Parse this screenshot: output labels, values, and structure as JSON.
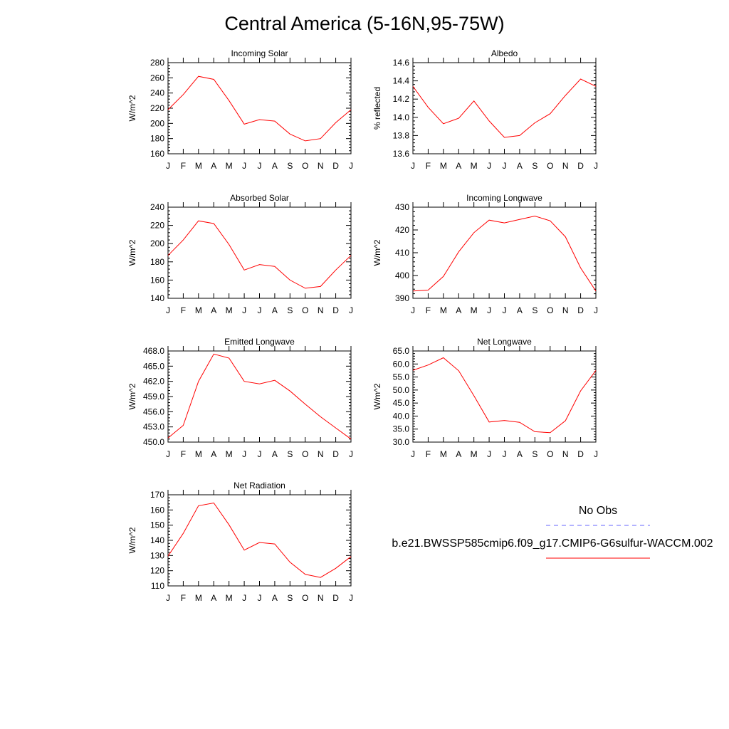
{
  "title": "Central America (5-16N,95-75W)",
  "colors": {
    "model_line": "#ff0000",
    "obs_line": "#6666ff",
    "axis": "#000000"
  },
  "legend": {
    "obs_label": "No Obs",
    "model_label": "b.e21.BWSSP585cmip6.f09_g17.CMIP6-G6sulfur-WACCM.002"
  },
  "chart_data": [
    {
      "type": "line",
      "title": "Incoming Solar",
      "ylabel": "W/m^2",
      "categories": [
        "J",
        "F",
        "M",
        "A",
        "M",
        "J",
        "J",
        "A",
        "S",
        "O",
        "N",
        "D",
        "J"
      ],
      "ylim": [
        160,
        280
      ],
      "yticks": [
        160,
        180,
        200,
        220,
        240,
        260,
        280
      ],
      "ytick_labels": [
        "160",
        "180",
        "200",
        "220",
        "240",
        "260",
        "280"
      ],
      "series": [
        {
          "values": [
            218,
            238,
            262,
            258,
            230,
            199,
            205,
            203,
            186,
            177,
            180,
            201,
            218
          ]
        }
      ]
    },
    {
      "type": "line",
      "title": "Albedo",
      "ylabel": "% reflected",
      "categories": [
        "J",
        "F",
        "M",
        "A",
        "M",
        "J",
        "J",
        "A",
        "S",
        "O",
        "N",
        "D",
        "J"
      ],
      "ylim": [
        13.6,
        14.6
      ],
      "yticks": [
        13.6,
        13.8,
        14.0,
        14.2,
        14.4,
        14.6
      ],
      "ytick_labels": [
        "13.6",
        "13.8",
        "14.0",
        "14.2",
        "14.4",
        "14.6"
      ],
      "series": [
        {
          "values": [
            14.34,
            14.11,
            13.93,
            13.99,
            14.18,
            13.96,
            13.78,
            13.8,
            13.94,
            14.04,
            14.24,
            14.42,
            14.34
          ]
        }
      ]
    },
    {
      "type": "line",
      "title": "Absorbed Solar",
      "ylabel": "W/m^2",
      "categories": [
        "J",
        "F",
        "M",
        "A",
        "M",
        "J",
        "J",
        "A",
        "S",
        "O",
        "N",
        "D",
        "J"
      ],
      "ylim": [
        140,
        240
      ],
      "yticks": [
        140,
        160,
        180,
        200,
        220,
        240
      ],
      "ytick_labels": [
        "140",
        "160",
        "180",
        "200",
        "220",
        "240"
      ],
      "series": [
        {
          "values": [
            187,
            204,
            225,
            222,
            199,
            171,
            177,
            175,
            160,
            151,
            153,
            171,
            187
          ]
        }
      ]
    },
    {
      "type": "line",
      "title": "Incoming Longwave",
      "ylabel": "W/m^2",
      "categories": [
        "J",
        "F",
        "M",
        "A",
        "M",
        "J",
        "J",
        "A",
        "S",
        "O",
        "N",
        "D",
        "J"
      ],
      "ylim": [
        390,
        430
      ],
      "yticks": [
        390,
        400,
        410,
        420,
        430
      ],
      "ytick_labels": [
        "390",
        "400",
        "410",
        "420",
        "430"
      ],
      "series": [
        {
          "values": [
            393.2,
            393.6,
            399.6,
            410.4,
            418.8,
            424.3,
            423.1,
            424.6,
            426.1,
            424.0,
            417.0,
            403.3,
            393.2
          ]
        }
      ]
    },
    {
      "type": "line",
      "title": "Emitted Longwave",
      "ylabel": "W/m^2",
      "categories": [
        "J",
        "F",
        "M",
        "A",
        "M",
        "J",
        "J",
        "A",
        "S",
        "O",
        "N",
        "D",
        "J"
      ],
      "ylim": [
        450,
        468
      ],
      "yticks": [
        450,
        453,
        456,
        459,
        462,
        465,
        468
      ],
      "ytick_labels": [
        "450.0",
        "453.0",
        "456.0",
        "459.0",
        "462.0",
        "465.0",
        "468.0"
      ],
      "series": [
        {
          "values": [
            450.8,
            453.3,
            462.0,
            467.4,
            466.6,
            462.0,
            461.5,
            462.2,
            460.1,
            457.5,
            455.0,
            452.8,
            450.6
          ]
        }
      ]
    },
    {
      "type": "line",
      "title": "Net Longwave",
      "ylabel": "W/m^2",
      "categories": [
        "J",
        "F",
        "M",
        "A",
        "M",
        "J",
        "J",
        "A",
        "S",
        "O",
        "N",
        "D",
        "J"
      ],
      "ylim": [
        30,
        65
      ],
      "yticks": [
        30,
        35,
        40,
        45,
        50,
        55,
        60,
        65
      ],
      "ytick_labels": [
        "30.0",
        "35.0",
        "40.0",
        "45.0",
        "50.0",
        "55.0",
        "60.0",
        "65.0"
      ],
      "series": [
        {
          "values": [
            57.6,
            59.6,
            62.4,
            57.4,
            47.8,
            37.7,
            38.3,
            37.6,
            34.0,
            33.6,
            38.2,
            49.7,
            57.5
          ]
        }
      ]
    },
    {
      "type": "line",
      "title": "Net Radiation",
      "ylabel": "W/m^2",
      "categories": [
        "J",
        "F",
        "M",
        "A",
        "M",
        "J",
        "J",
        "A",
        "S",
        "O",
        "N",
        "D",
        "J"
      ],
      "ylim": [
        110,
        170
      ],
      "yticks": [
        110,
        120,
        130,
        140,
        150,
        160,
        170
      ],
      "ytick_labels": [
        "110",
        "120",
        "130",
        "140",
        "150",
        "160",
        "170"
      ],
      "series": [
        {
          "values": [
            129.6,
            144.6,
            162.8,
            164.6,
            150.2,
            133.6,
            138.6,
            137.6,
            125.6,
            117.6,
            115.6,
            121.6,
            129.3
          ]
        }
      ]
    }
  ]
}
